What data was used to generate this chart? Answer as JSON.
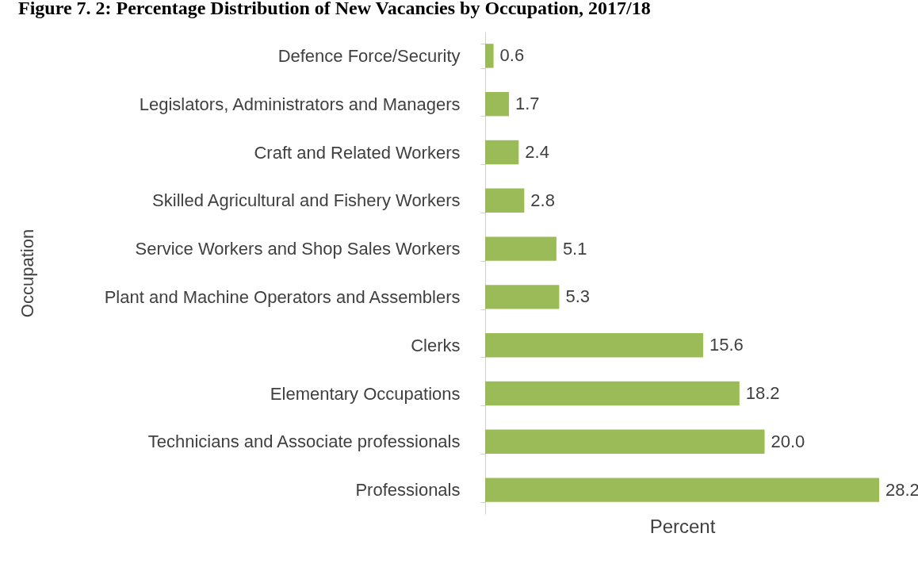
{
  "chart_data": {
    "type": "bar",
    "orientation": "horizontal",
    "title": "Figure 7. 2: Percentage Distribution of New Vacancies by Occupation, 2017/18",
    "xlabel": "Percent",
    "ylabel": "Occupation",
    "categories": [
      "Defence Force/Security",
      "Legislators, Administrators and Managers",
      "Craft and Related Workers",
      "Skilled Agricultural and Fishery Workers",
      "Service Workers and Shop Sales Workers",
      "Plant and Machine Operators and Assemblers",
      "Clerks",
      "Elementary Occupations",
      "Technicians and Associate professionals",
      "Professionals"
    ],
    "values": [
      0.6,
      1.7,
      2.4,
      2.8,
      5.1,
      5.3,
      15.6,
      18.2,
      20.0,
      28.2
    ],
    "value_labels": [
      "0.6",
      "1.7",
      "2.4",
      "2.8",
      "5.1",
      "5.3",
      "15.6",
      "18.2",
      "20.0",
      "28.2"
    ],
    "color": "#9bbb59",
    "tick_labels": "y"
  }
}
